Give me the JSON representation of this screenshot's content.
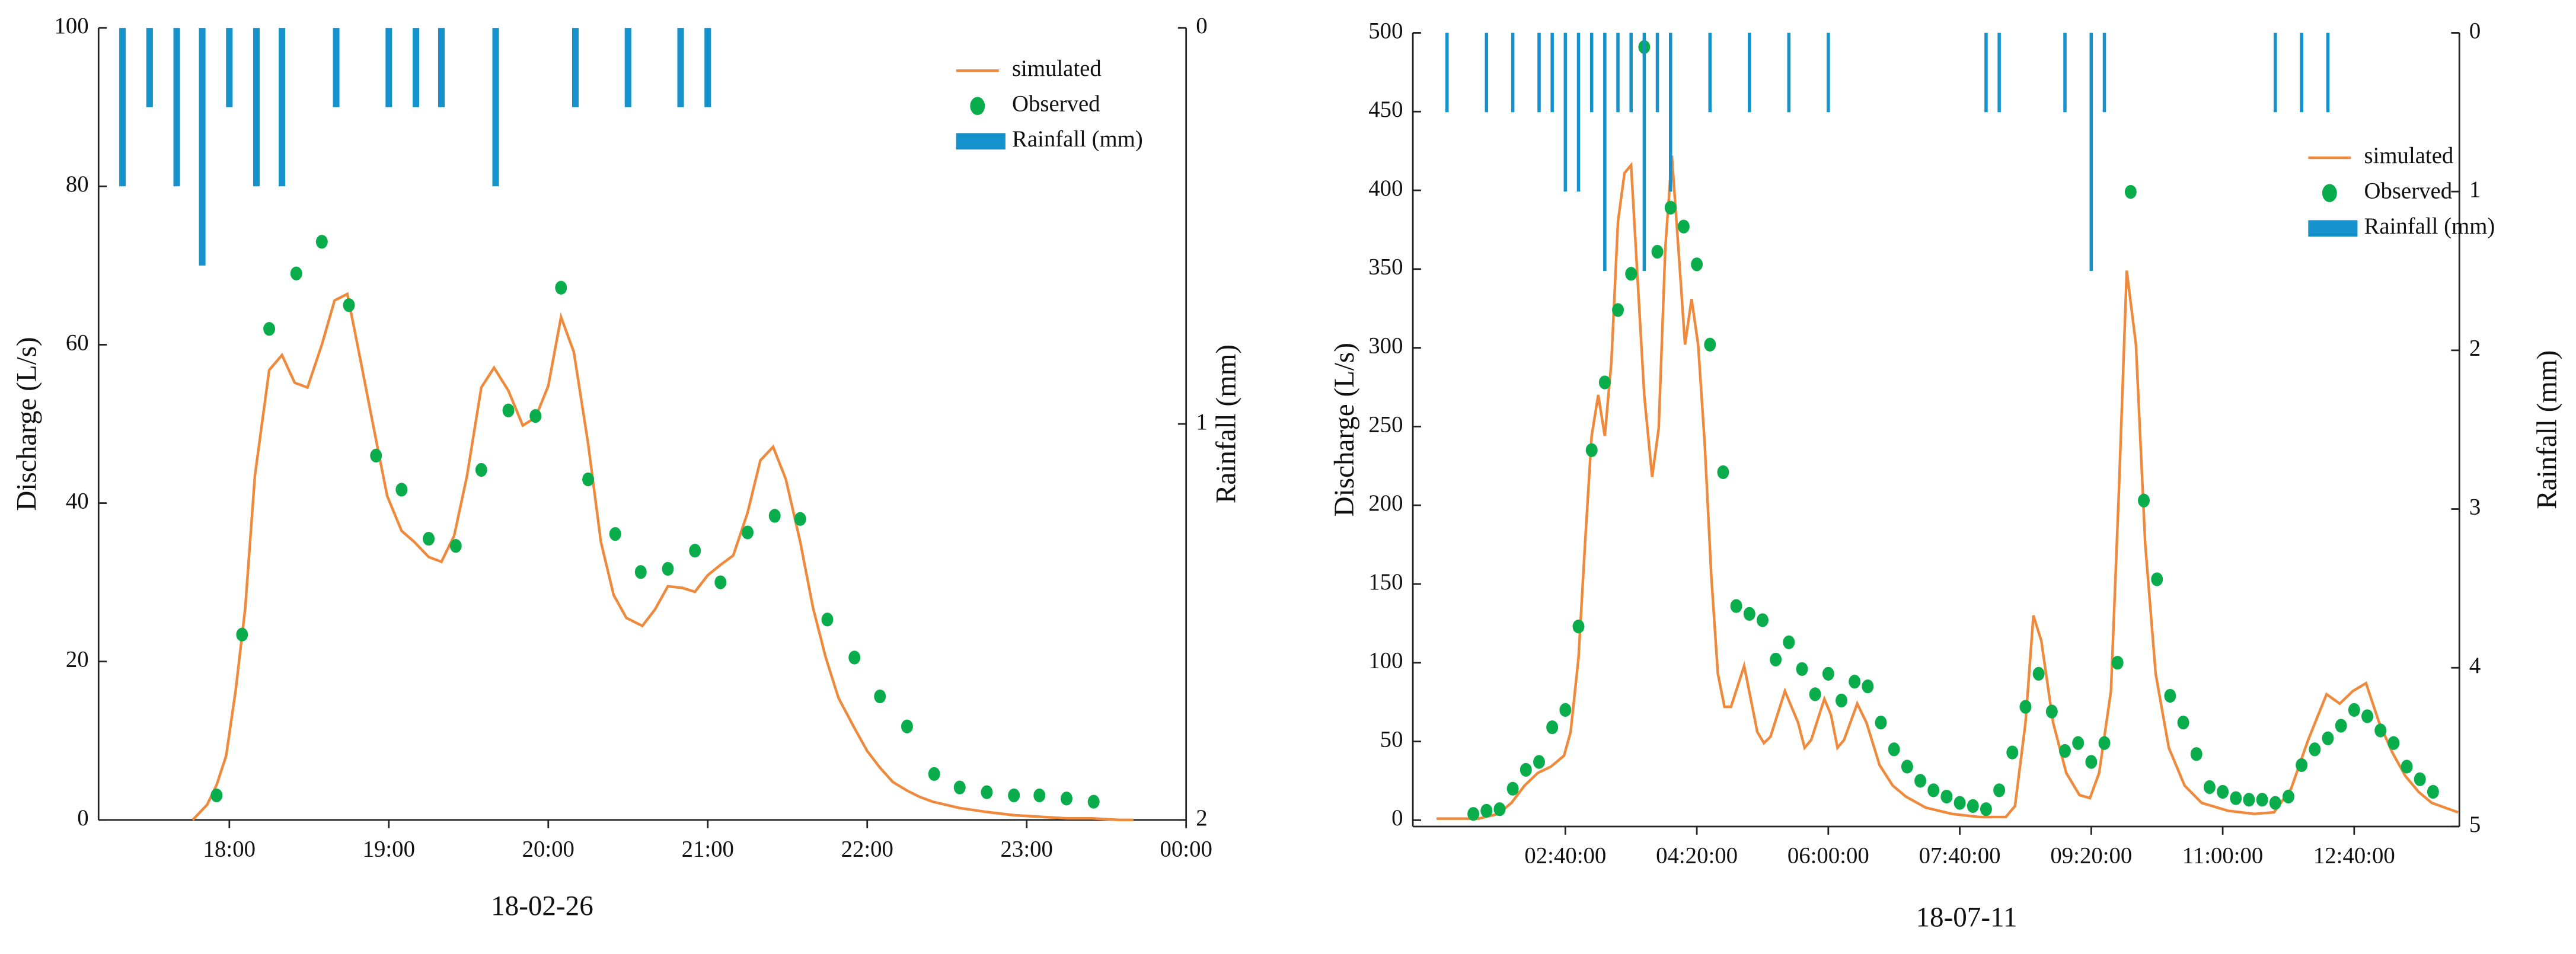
{
  "chart_data": [
    {
      "type": "combo",
      "xlabel": "18-02-26",
      "ylabel": "Discharge (L/s)",
      "y2label": "Rainfall (mm)",
      "xlim": [
        17.18,
        24
      ],
      "xticks": [
        {
          "value": 18,
          "label": "18:00"
        },
        {
          "value": 19,
          "label": "19:00"
        },
        {
          "value": 20,
          "label": "20:00"
        },
        {
          "value": 21,
          "label": "21:00"
        },
        {
          "value": 22,
          "label": "22:00"
        },
        {
          "value": 23,
          "label": "23:00"
        },
        {
          "value": 24,
          "label": "00:00"
        }
      ],
      "ylim": [
        0,
        100
      ],
      "yticks": [
        0,
        20,
        40,
        60,
        80,
        100
      ],
      "y2lim": [
        2,
        0
      ],
      "y2ticks": [
        0,
        1,
        2
      ],
      "legend": "upper right",
      "series": [
        {
          "name": "simulated",
          "type": "line",
          "color": "#ef8a3d",
          "x": [
            17.77,
            17.86,
            17.92,
            17.98,
            18.04,
            18.1,
            18.16,
            18.25,
            18.33,
            18.41,
            18.49,
            18.58,
            18.66,
            18.74,
            18.82,
            18.91,
            18.99,
            19.08,
            19.16,
            19.25,
            19.33,
            19.41,
            19.49,
            19.58,
            19.66,
            19.75,
            19.84,
            19.92,
            20.0,
            20.08,
            20.16,
            20.25,
            20.33,
            20.41,
            20.49,
            20.59,
            20.67,
            20.75,
            20.84,
            20.92,
            21.0,
            21.08,
            21.16,
            21.25,
            21.33,
            21.41,
            21.49,
            21.58,
            21.66,
            21.74,
            21.82,
            21.92,
            22.0,
            22.08,
            22.16,
            22.25,
            22.33,
            22.41,
            22.58,
            22.75,
            22.92,
            23.08,
            23.25,
            23.41,
            23.58,
            23.67
          ],
          "values": [
            0,
            1.9,
            4.4,
            8.1,
            16.4,
            26.8,
            43.4,
            56.8,
            58.7,
            55.2,
            54.6,
            60,
            65.6,
            66.4,
            58.3,
            49,
            40.9,
            36.5,
            35.1,
            33.2,
            32.6,
            35.9,
            43.4,
            54.6,
            57.1,
            54.2,
            49.8,
            50.8,
            54.8,
            63.5,
            59.1,
            47.5,
            35.1,
            28.4,
            25.5,
            24.5,
            26.6,
            29.5,
            29.3,
            28.8,
            30.9,
            32.2,
            33.4,
            38.8,
            45.4,
            47.1,
            43,
            35.1,
            26.8,
            20.5,
            15.4,
            11.6,
            8.7,
            6.6,
            4.8,
            3.7,
            2.9,
            2.3,
            1.5,
            1,
            0.6,
            0.4,
            0.2,
            0.2,
            0,
            0
          ]
        },
        {
          "name": "Observed",
          "type": "scatter",
          "color": "#0aad4c",
          "x": [
            17.92,
            18.08,
            18.25,
            18.42,
            18.58,
            18.75,
            18.92,
            19.08,
            19.25,
            19.42,
            19.58,
            19.75,
            19.92,
            20.08,
            20.25,
            20.42,
            20.58,
            20.75,
            20.92,
            21.08,
            21.25,
            21.42,
            21.58,
            21.75,
            21.92,
            22.08,
            22.25,
            22.42,
            22.58,
            22.75,
            22.92,
            23.08,
            23.25,
            23.42
          ],
          "values": [
            3.1,
            23.4,
            62,
            69,
            73,
            65,
            46,
            41.7,
            35.5,
            34.6,
            44.2,
            51.7,
            51,
            67.2,
            43,
            36.1,
            31.3,
            31.7,
            34,
            30,
            36.3,
            38.4,
            38,
            25.3,
            20.5,
            15.6,
            11.8,
            5.8,
            4.1,
            3.5,
            3.1,
            3.1,
            2.7,
            2.3
          ]
        },
        {
          "name": "Rainfall (mm)",
          "type": "bar",
          "axis": "y2",
          "color": "#1592cc",
          "x": [
            17.33,
            17.5,
            17.67,
            17.83,
            18,
            18.17,
            18.33,
            18.67,
            19,
            19.17,
            19.33,
            19.67,
            20.17,
            20.5,
            20.83,
            21
          ],
          "values": [
            0.4,
            0.2,
            0.4,
            0.6,
            0.2,
            0.4,
            0.4,
            0.2,
            0.2,
            0.2,
            0.2,
            0.4,
            0.2,
            0.2,
            0.2,
            0.2
          ]
        }
      ]
    },
    {
      "type": "combo",
      "xlabel": "18-07-11",
      "ylabel": "Discharge (L/s)",
      "y2label": "Rainfall (mm)",
      "xlim": [
        44,
        840
      ],
      "xticks": [
        {
          "value": 160,
          "label": "02:40:00"
        },
        {
          "value": 260,
          "label": "04:20:00"
        },
        {
          "value": 360,
          "label": "06:00:00"
        },
        {
          "value": 460,
          "label": "07:40:00"
        },
        {
          "value": 560,
          "label": "09:20:00"
        },
        {
          "value": 660,
          "label": "11:00:00"
        },
        {
          "value": 760,
          "label": "12:40:00"
        }
      ],
      "ylim": [
        -4,
        500
      ],
      "yticks": [
        0,
        50,
        100,
        150,
        200,
        250,
        300,
        350,
        400,
        450,
        500
      ],
      "y2lim": [
        5,
        0
      ],
      "y2ticks": [
        0,
        1,
        2,
        3,
        4,
        5
      ],
      "legend": "upper right",
      "series": [
        {
          "name": "simulated",
          "type": "line",
          "color": "#ef8a3d",
          "x": [
            62,
            94,
            109,
            119,
            129,
            139,
            149,
            159,
            164,
            170,
            175,
            180,
            185,
            190,
            195,
            200,
            205,
            210,
            215,
            220,
            226,
            231,
            236,
            241,
            246,
            251,
            256,
            261,
            266,
            271,
            276,
            281,
            286,
            296,
            306,
            311,
            316,
            327,
            337,
            342,
            347,
            357,
            362,
            367,
            372,
            382,
            389,
            399,
            409,
            419,
            434,
            454,
            475,
            495,
            502,
            510,
            516,
            522,
            531,
            541,
            551,
            559,
            566,
            575,
            581,
            587,
            594,
            601,
            609,
            619,
            631,
            644,
            664,
            684,
            699,
            712,
            725,
            739,
            749,
            759,
            769,
            779,
            789,
            799,
            809,
            819,
            839
          ],
          "values": [
            1,
            1,
            4,
            11,
            22,
            30,
            34,
            41,
            56,
            103,
            176,
            244,
            270,
            244,
            291,
            380,
            411,
            416,
            343,
            270,
            218,
            249,
            363,
            422,
            363,
            302,
            331,
            302,
            239,
            155,
            93,
            72,
            72,
            98,
            56,
            49,
            53,
            82,
            62,
            46,
            51,
            77,
            67,
            46,
            51,
            74,
            62,
            35,
            22,
            15,
            8,
            4,
            2,
            2,
            9,
            62,
            130,
            114,
            62,
            30,
            16,
            14,
            30,
            82,
            208,
            349,
            302,
            176,
            93,
            46,
            22,
            11,
            6,
            4,
            5,
            20,
            51,
            80,
            74,
            82,
            87,
            62,
            43,
            28,
            18,
            11,
            5
          ]
        },
        {
          "name": "Observed",
          "type": "scatter",
          "color": "#0aad4c",
          "x": [
            90,
            100,
            110,
            120,
            130,
            140,
            150,
            160,
            170,
            180,
            190,
            200,
            210,
            220,
            230,
            240,
            250,
            260,
            270,
            280,
            290,
            300,
            310,
            320,
            330,
            340,
            350,
            360,
            370,
            380,
            390,
            400,
            410,
            420,
            430,
            440,
            450,
            460,
            470,
            480,
            490,
            500,
            510,
            520,
            530,
            540,
            550,
            560,
            570,
            580,
            590,
            600,
            610,
            620,
            630,
            640,
            650,
            660,
            670,
            680,
            690,
            700,
            710,
            720,
            730,
            740,
            750,
            760,
            770,
            780,
            790,
            800,
            810,
            820
          ],
          "values": [
            4,
            6,
            7,
            20,
            32,
            37,
            59,
            70,
            123,
            235,
            278,
            324,
            347,
            491,
            361,
            389,
            377,
            353,
            302,
            221,
            136,
            131,
            127,
            102,
            113,
            96,
            80,
            93,
            76,
            88,
            85,
            62,
            45,
            34,
            25,
            19,
            15,
            11,
            9,
            7,
            19,
            43,
            72,
            93,
            69,
            44,
            49,
            37,
            49,
            100,
            399,
            203,
            153,
            79,
            62,
            42,
            21,
            18,
            14,
            13,
            13,
            11,
            15,
            35,
            45,
            52,
            60,
            70,
            66,
            57,
            49,
            34,
            26,
            18
          ]
        },
        {
          "name": "Rainfall (mm)",
          "type": "bar",
          "axis": "y2",
          "color": "#1592cc",
          "x": [
            70,
            100,
            120,
            140,
            150,
            160,
            170,
            180,
            190,
            200,
            210,
            220,
            230,
            240,
            270,
            300,
            330,
            360,
            480,
            490,
            540,
            560,
            570,
            700,
            720,
            740
          ],
          "values": [
            0.5,
            0.5,
            0.5,
            0.5,
            0.5,
            1,
            1,
            0.5,
            1.5,
            0.5,
            0.5,
            1.5,
            0.5,
            1,
            0.5,
            0.5,
            0.5,
            0.5,
            0.5,
            0.5,
            0.5,
            1.5,
            0.5,
            0.5,
            0.5,
            0.5
          ]
        }
      ]
    }
  ]
}
